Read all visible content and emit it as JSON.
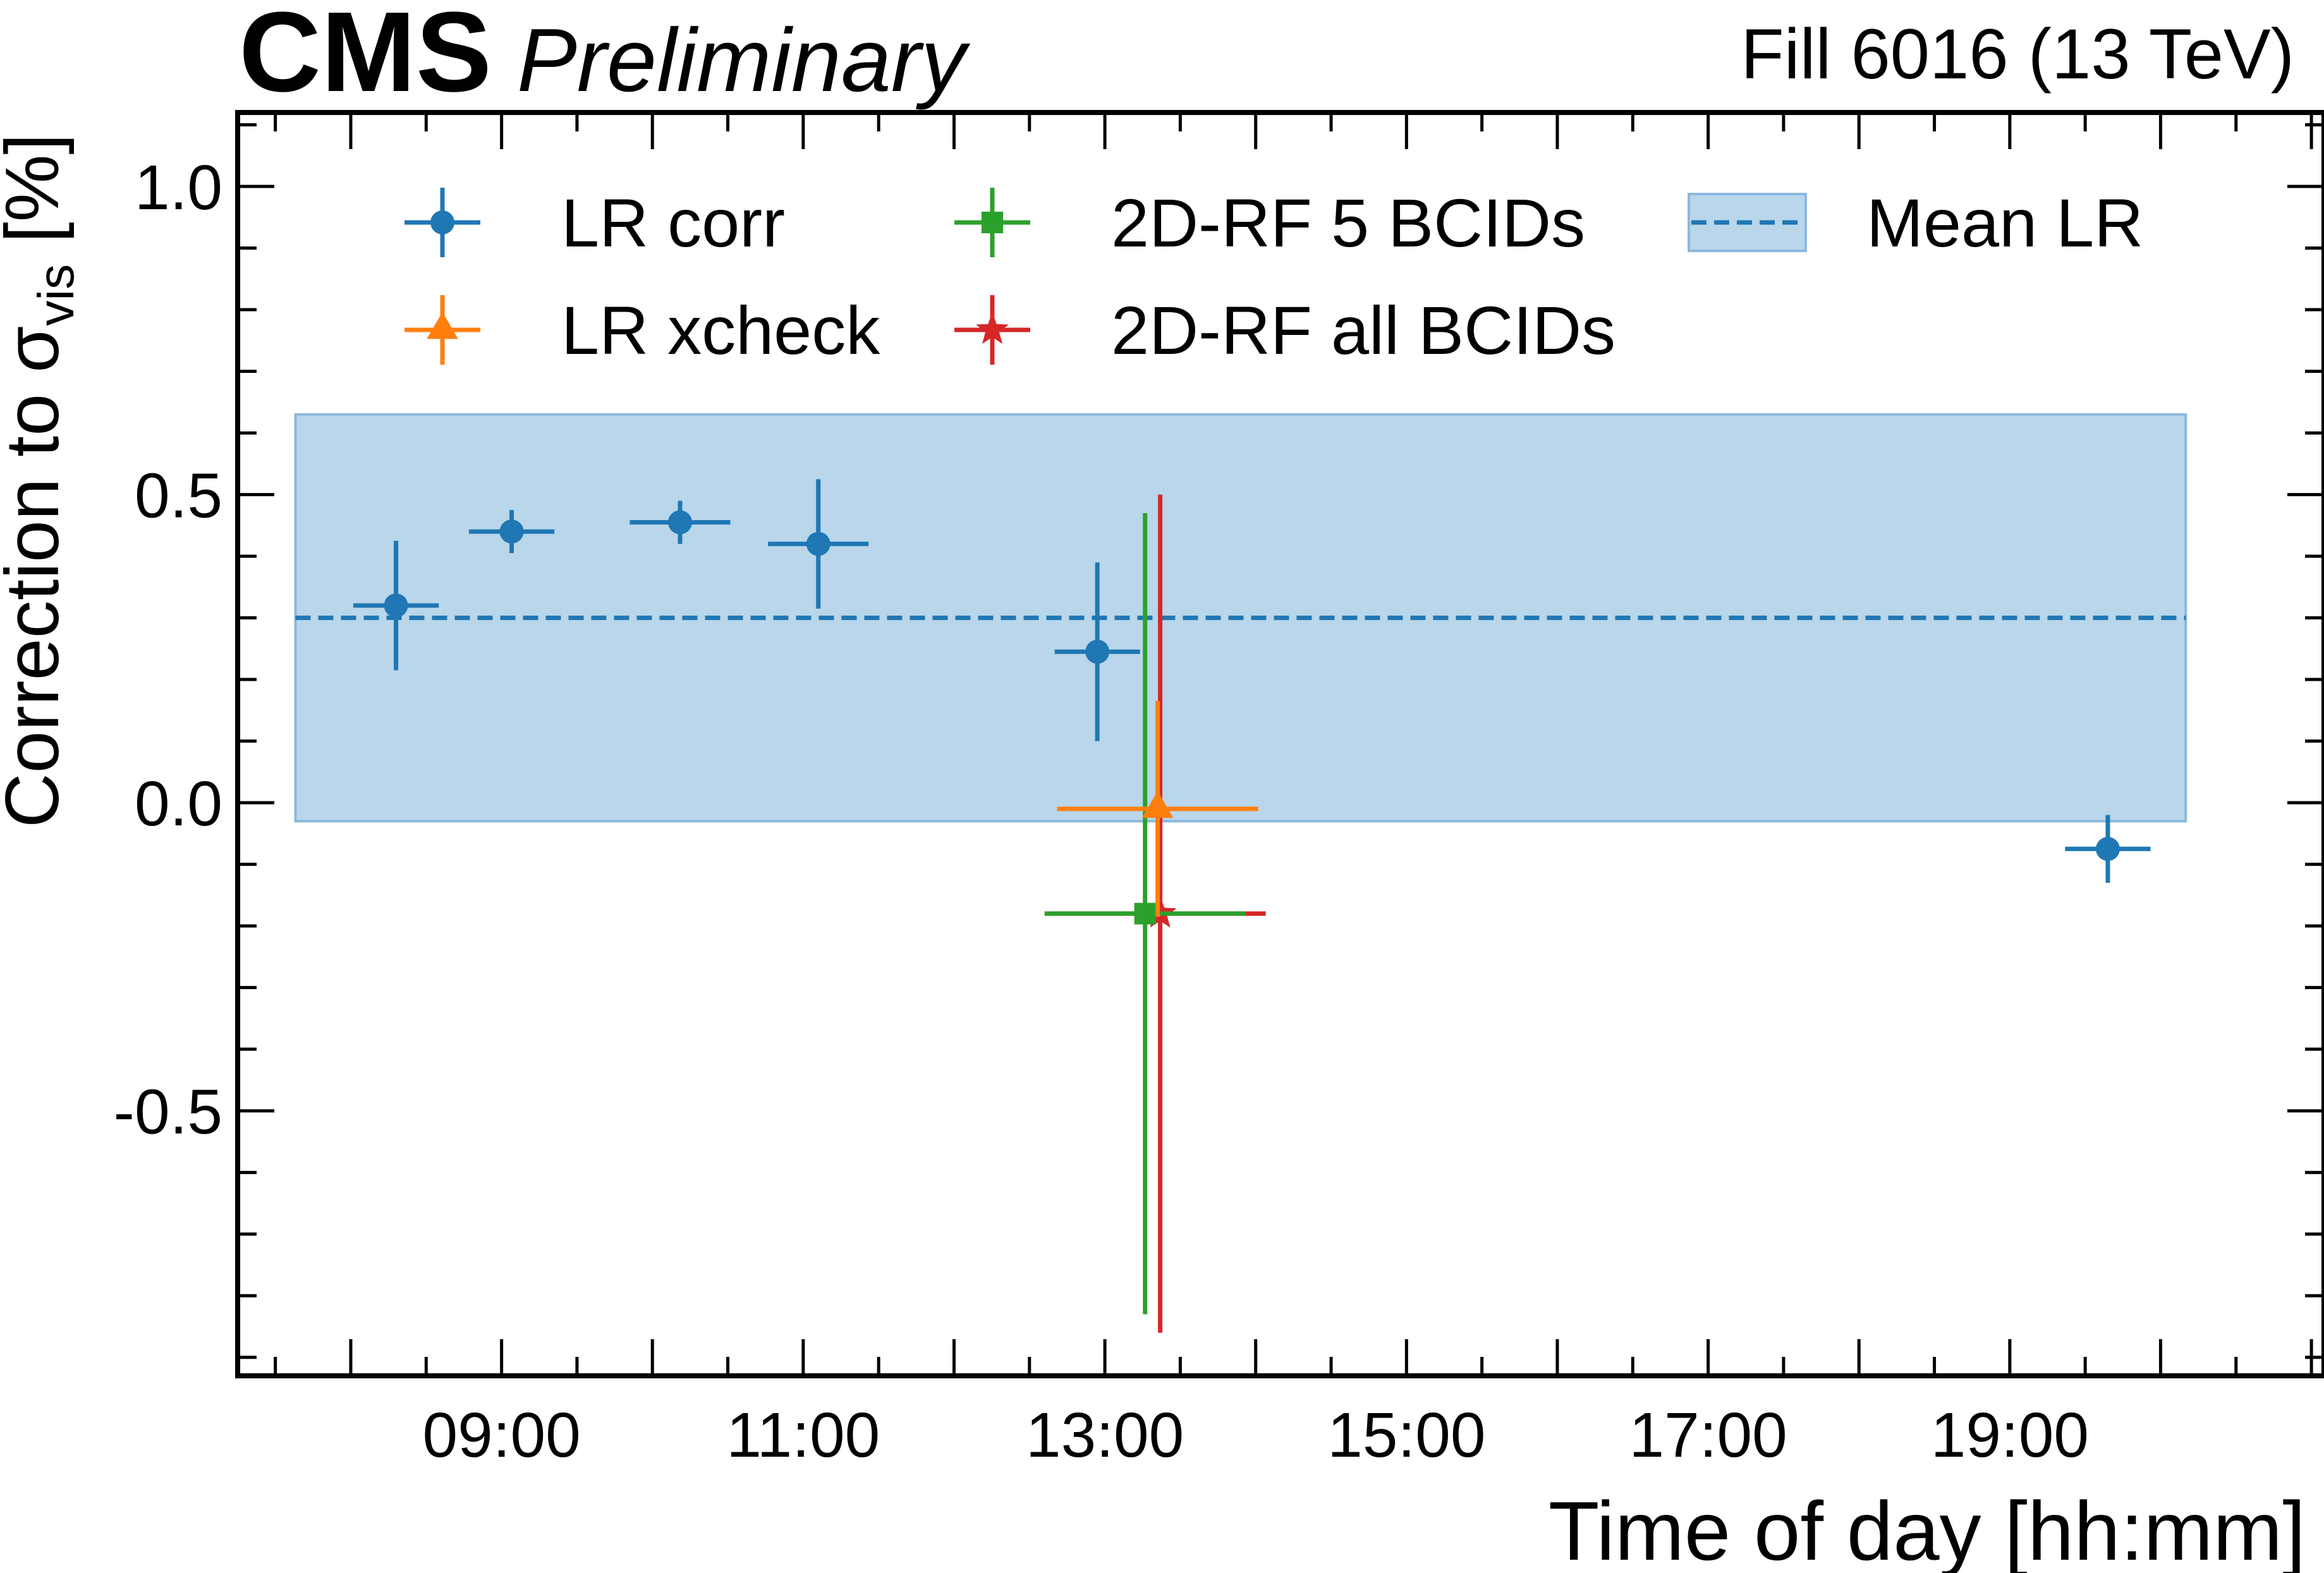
{
  "header": {
    "experiment": "CMS",
    "status": "Preliminary",
    "fill_label": "Fill 6016 (13 TeV)"
  },
  "chart_data": {
    "type": "scatter",
    "title": "",
    "xlabel": "Time of day [hh:mm]",
    "ylabel_main": "Correction to σ",
    "ylabel_sub": "vis",
    "ylabel_unit": " [%]",
    "xlim": [
      "07:15",
      "21:05"
    ],
    "ylim": [
      -0.93,
      1.12
    ],
    "x_ticks": [
      "09:00",
      "11:00",
      "13:00",
      "15:00",
      "17:00",
      "19:00"
    ],
    "y_ticks": [
      {
        "value": 1.0,
        "label": "1.0"
      },
      {
        "value": 0.5,
        "label": "0.5"
      },
      {
        "value": 0.0,
        "label": "0.0"
      },
      {
        "value": -0.5,
        "label": "-0.5"
      }
    ],
    "grid": false,
    "legend_position": "top",
    "series": [
      {
        "name": "LR corr",
        "color": "#1f77b4",
        "marker": "circle",
        "points": [
          {
            "x": "08:18",
            "xerr_min": 17,
            "y": 0.32,
            "yerr": 0.105
          },
          {
            "x": "09:04",
            "xerr_min": 17,
            "y": 0.44,
            "yerr": 0.035
          },
          {
            "x": "10:11",
            "xerr_min": 20,
            "y": 0.455,
            "yerr": 0.035
          },
          {
            "x": "11:06",
            "xerr_min": 20,
            "y": 0.42,
            "yerr": 0.105
          },
          {
            "x": "12:57",
            "xerr_min": 17,
            "y": 0.245,
            "yerr": 0.145
          },
          {
            "x": "19:39",
            "xerr_min": 17,
            "y": -0.075,
            "yerr": 0.055
          }
        ]
      },
      {
        "name": "LR xcheck",
        "color": "#ff7f0e",
        "marker": "triangle",
        "points": [
          {
            "x": "13:21",
            "xerr_min": 40,
            "y": -0.01,
            "yerr": 0.175
          }
        ]
      },
      {
        "name": "2D-RF 5 BCIDs",
        "color": "#2ca02c",
        "marker": "square",
        "points": [
          {
            "x": "13:16",
            "xerr_min": 40,
            "y": -0.18,
            "yerr": 0.65
          }
        ]
      },
      {
        "name": "2D-RF all BCIDs",
        "color": "#d62728",
        "marker": "star",
        "points": [
          {
            "x": "13:22",
            "xerr_min": 42,
            "y": -0.18,
            "yerr": 0.68
          }
        ]
      }
    ],
    "mean": {
      "name": "Mean LR",
      "color": "#1f77b4",
      "band_color": "#b9d6ea",
      "value": 0.3,
      "band_low": -0.03,
      "band_high": 0.63,
      "x_start": "07:38",
      "x_end": "20:10"
    }
  }
}
